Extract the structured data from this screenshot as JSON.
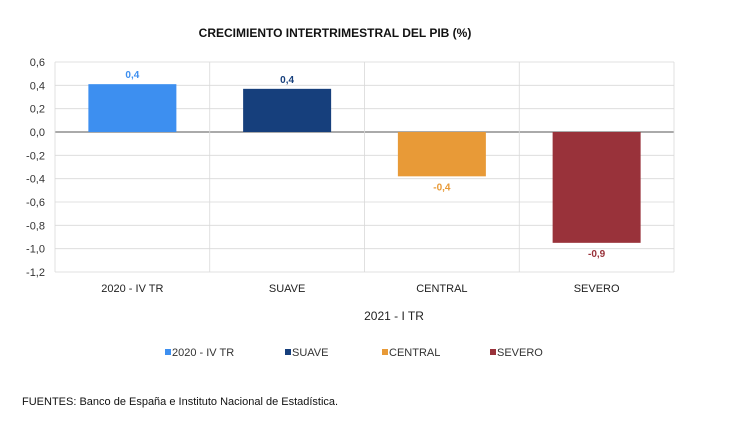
{
  "chart_data": {
    "type": "bar",
    "title": "CRECIMIENTO INTERTRIMESTRAL DEL PIB (%)",
    "categories": [
      "2020 - IV TR",
      "SUAVE",
      "CENTRAL",
      "SEVERO"
    ],
    "values": [
      0.4,
      0.4,
      -0.4,
      -0.9
    ],
    "bar_values": [
      0.41,
      0.37,
      -0.38,
      -0.95
    ],
    "data_labels": [
      "0,4",
      "0,4",
      "-0,4",
      "-0,9"
    ],
    "colors": [
      "#3d8ff0",
      "#163f7c",
      "#e89a37",
      "#99323a"
    ],
    "ylim": [
      -1.2,
      0.6
    ],
    "yticks": [
      "0,6",
      "0,4",
      "0,2",
      "0,0",
      "-0,2",
      "-0,4",
      "-0,6",
      "-0,8",
      "-1,0",
      "-1,2"
    ],
    "ytick_values": [
      0.6,
      0.4,
      0.2,
      0.0,
      -0.2,
      -0.4,
      -0.6,
      -0.8,
      -1.0,
      -1.2
    ],
    "group_label": "2021 - I TR",
    "xlabel": "",
    "ylabel": "",
    "grid": true,
    "legend": {
      "position": "bottom",
      "entries": [
        "2020 - IV TR",
        "SUAVE",
        "CENTRAL",
        "SEVERO"
      ]
    }
  },
  "source_text": "FUENTES: Banco de España e Instituto Nacional de Estadística."
}
